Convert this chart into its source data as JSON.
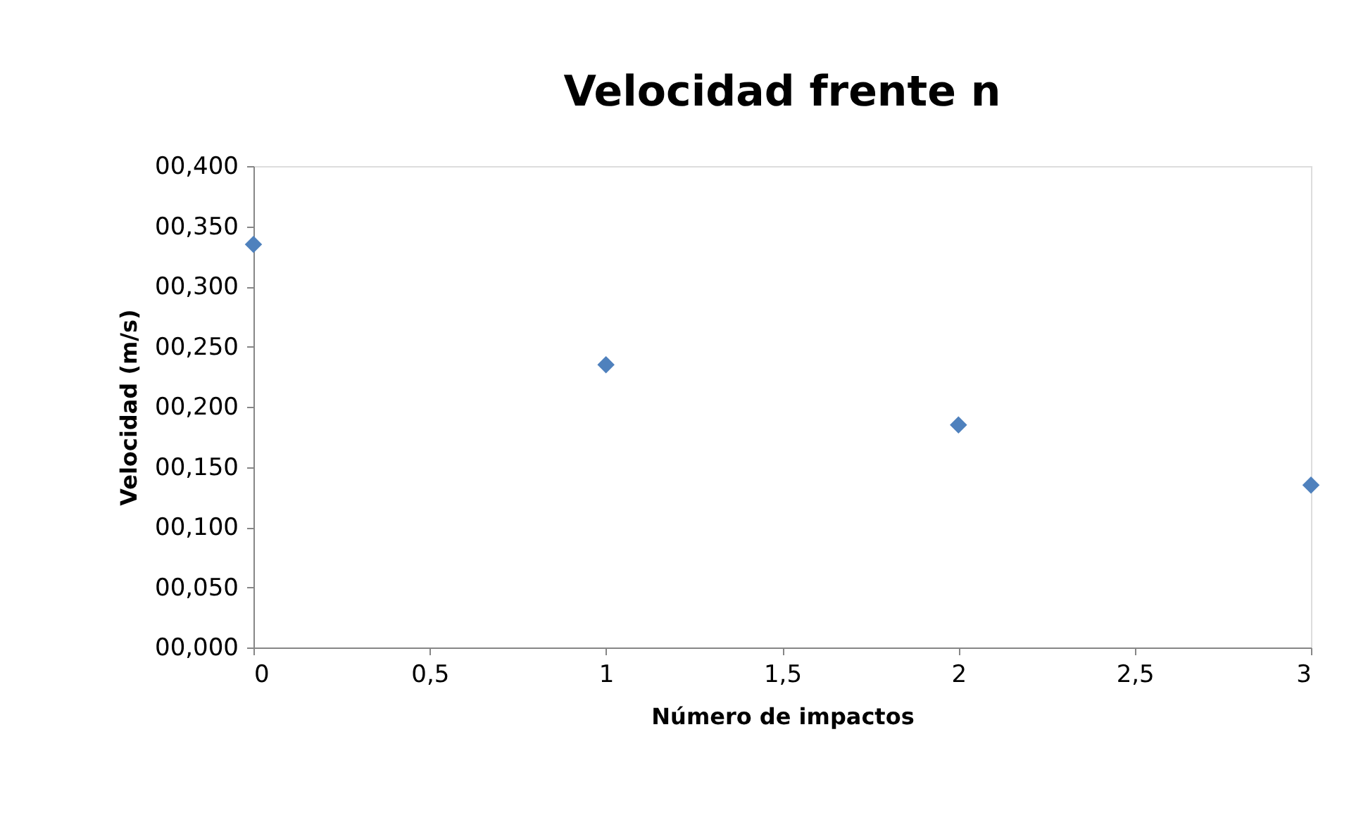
{
  "chart_data": {
    "type": "scatter",
    "title": "Velocidad frente n",
    "xlabel": "Número de impactos",
    "ylabel": "Velocidad (m/s)",
    "x": [
      0,
      1,
      2,
      3
    ],
    "series": [
      {
        "color": "#4f81bd",
        "values": [
          0.335,
          0.235,
          0.185,
          0.135
        ]
      }
    ],
    "xlim": [
      0,
      3
    ],
    "xticks": [
      0,
      {
        "value": 0.5,
        "label": "0,5"
      },
      1,
      {
        "value": 1.5,
        "label": "1,5"
      },
      2,
      {
        "value": 2.5,
        "label": "2,5"
      },
      3
    ],
    "ylim": [
      0,
      0.4
    ],
    "yticks": [
      {
        "value": 0,
        "label": "00,000"
      },
      {
        "value": 0.05,
        "label": "00,050"
      },
      {
        "value": 0.1,
        "label": "00,100"
      },
      {
        "value": 0.15,
        "label": "00,150"
      },
      {
        "value": 0.2,
        "label": "00,200"
      },
      {
        "value": 0.25,
        "label": "00,250"
      },
      {
        "value": 0.3,
        "label": "00,300"
      },
      {
        "value": 0.35,
        "label": "00,350"
      },
      {
        "value": 0.4,
        "label": "00,400"
      }
    ],
    "marker": "diamond",
    "grid": false
  }
}
